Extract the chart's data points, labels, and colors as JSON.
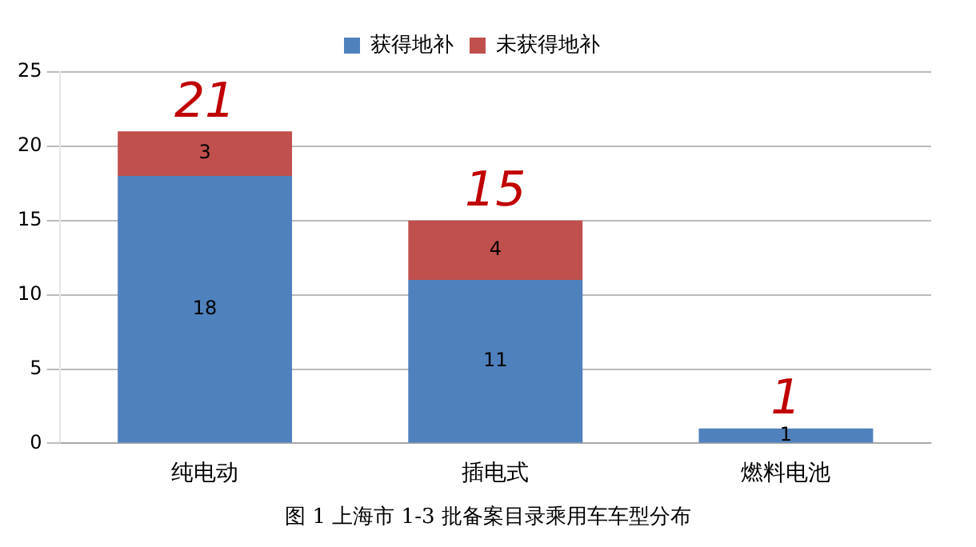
{
  "chart_data": {
    "type": "bar",
    "stacked": true,
    "categories": [
      "纯电动",
      "插电式",
      "燃料电池"
    ],
    "series": [
      {
        "name": "获得地补",
        "color": "#4f81bd",
        "values": [
          18,
          11,
          1
        ],
        "value_labels": [
          "18",
          "11",
          "1"
        ]
      },
      {
        "name": "未获得地补",
        "color": "#c0504d",
        "values": [
          3,
          4,
          0
        ],
        "value_labels": [
          "3",
          "4",
          null
        ]
      }
    ],
    "totals": [
      "21",
      "15",
      "1"
    ],
    "ylim": [
      0,
      25
    ],
    "yticks": [
      0,
      5,
      10,
      15,
      20,
      25
    ],
    "grid": "y",
    "legend": "top",
    "annotations": [
      "图 1 上海市 1-3 批备案目录乘用车车型分布"
    ]
  }
}
